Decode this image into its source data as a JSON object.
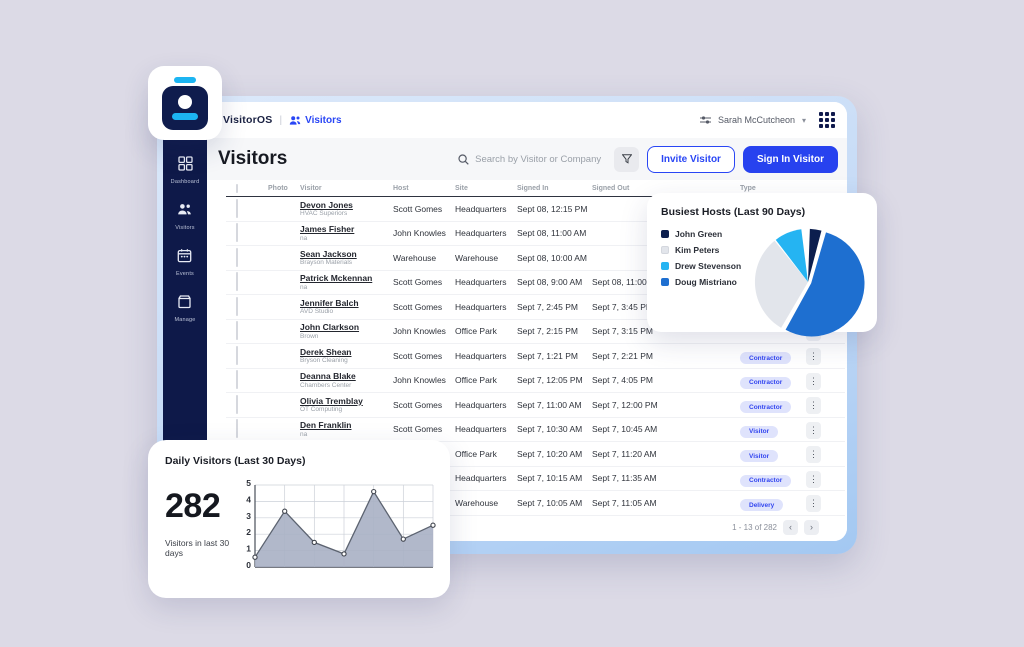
{
  "accent": {
    "primary_blue": "#2946f5",
    "navy": "#0e1949",
    "cyan": "#1cb5f2",
    "background": "#dcdae6"
  },
  "topnav": {
    "brand": "VisitorOS",
    "divider": "|",
    "breadcrumb": "Visitors",
    "user_name": "Sarah McCutcheon",
    "chevron": "▾"
  },
  "sidebar": {
    "items": [
      {
        "label": "Dashboard",
        "icon": "dashboard-grid-icon"
      },
      {
        "label": "Visitors",
        "icon": "people-icon"
      },
      {
        "label": "Events",
        "icon": "calendar-icon"
      },
      {
        "label": "Manage",
        "icon": "box-icon"
      }
    ]
  },
  "page_header": {
    "title": "Visitors",
    "search_placeholder": "Search by Visitor or Company",
    "invite_label": "Invite Visitor",
    "signin_label": "Sign In Visitor"
  },
  "table": {
    "columns": [
      "",
      "Photo",
      "Visitor",
      "Host",
      "Site",
      "Signed In",
      "Signed Out",
      "Type",
      ""
    ],
    "rows": [
      {
        "visitor": "Devon Jones",
        "company": "HVAC Superiors",
        "host": "Scott Gomes",
        "site": "Headquarters",
        "signed_in": "Sept 08, 12:15 PM",
        "signed_out": "",
        "type": ""
      },
      {
        "visitor": "James Fisher",
        "company": "na",
        "host": "John Knowles",
        "site": "Headquarters",
        "signed_in": "Sept 08, 11:00 AM",
        "signed_out": "",
        "type": ""
      },
      {
        "visitor": "Sean Jackson",
        "company": "Brayson Materials",
        "host": "Warehouse",
        "site": "Warehouse",
        "signed_in": "Sept 08, 10:00 AM",
        "signed_out": "",
        "type": ""
      },
      {
        "visitor": "Patrick Mckennan",
        "company": "na",
        "host": "Scott Gomes",
        "site": "Headquarters",
        "signed_in": "Sept 08, 9:00 AM",
        "signed_out": "Sept 08, 11:00 AM",
        "type": ""
      },
      {
        "visitor": "Jennifer Balch",
        "company": "AVD Studio",
        "host": "Scott Gomes",
        "site": "Headquarters",
        "signed_in": "Sept 7, 2:45 PM",
        "signed_out": "Sept 7, 3:45 PM",
        "type": ""
      },
      {
        "visitor": "John Clarkson",
        "company": "Brown",
        "host": "John Knowles",
        "site": "Office Park",
        "signed_in": "Sept 7, 2:15 PM",
        "signed_out": "Sept 7, 3:15 PM",
        "type": ""
      },
      {
        "visitor": "Derek Shean",
        "company": "Bryson Cleaning",
        "host": "Scott Gomes",
        "site": "Headquarters",
        "signed_in": "Sept 7, 1:21 PM",
        "signed_out": "Sept 7, 2:21 PM",
        "type": "Contractor"
      },
      {
        "visitor": "Deanna Blake",
        "company": "Chambers Center",
        "host": "John Knowles",
        "site": "Office Park",
        "signed_in": "Sept 7, 12:05 PM",
        "signed_out": "Sept 7, 4:05 PM",
        "type": "Contractor"
      },
      {
        "visitor": "Olivia Tremblay",
        "company": "OT Computing",
        "host": "Scott Gomes",
        "site": "Headquarters",
        "signed_in": "Sept 7, 11:00 AM",
        "signed_out": "Sept 7, 12:00 PM",
        "type": "Contractor"
      },
      {
        "visitor": "Den Franklin",
        "company": "na",
        "host": "Scott Gomes",
        "site": "Headquarters",
        "signed_in": "Sept 7, 10:30 AM",
        "signed_out": "Sept 7, 10:45 AM",
        "type": "Visitor"
      },
      {
        "visitor": "",
        "company": "",
        "host": "",
        "site": "Office Park",
        "signed_in": "Sept 7, 10:20 AM",
        "signed_out": "Sept 7, 11:20 AM",
        "type": "Visitor"
      },
      {
        "visitor": "",
        "company": "",
        "host": "",
        "site": "Headquarters",
        "signed_in": "Sept 7, 10:15 AM",
        "signed_out": "Sept 7, 11:35 AM",
        "type": "Contractor"
      },
      {
        "visitor": "",
        "company": "",
        "host": "",
        "site": "Warehouse",
        "signed_in": "Sept 7, 10:05 AM",
        "signed_out": "Sept 7, 11:05 AM",
        "type": "Delivery"
      }
    ],
    "kebab_glyph": "⋮",
    "pagination": {
      "range_label": "1 - 13 of 282",
      "prev": "‹",
      "next": "›"
    }
  },
  "chart_data": [
    {
      "type": "pie",
      "title": "Busiest Hosts (Last 90 Days)",
      "labels": [
        "John Green",
        "Kim Peters",
        "Drew Stevenson",
        "Doug Mistriano"
      ],
      "values": [
        3.6,
        31.4,
        8.6,
        54.7
      ],
      "colors": [
        "#0c1e4e",
        "#e2e5eb",
        "#25b4f2",
        "#1e6fd0"
      ],
      "draw_order_from_top": [
        "John Green",
        "Doug Mistriano",
        "Kim Peters",
        "Drew Stevenson"
      ],
      "exploded_slice": "Doug Mistriano",
      "legend_position": "left"
    },
    {
      "type": "area",
      "title": "Daily Visitors (Last 30 Days)",
      "summary_value": "282",
      "summary_label": "Visitors in last 30 days",
      "x": [
        1,
        2,
        3,
        4,
        5,
        6,
        7
      ],
      "values": [
        0.6,
        3.4,
        1.5,
        0.8,
        4.6,
        1.7,
        2.55
      ],
      "ylim": [
        0,
        5
      ],
      "yticks": [
        0,
        1,
        2,
        3,
        4,
        5
      ],
      "grid": true,
      "line_color": "#5c6370",
      "fill_color": "#a9b0c4"
    }
  ]
}
